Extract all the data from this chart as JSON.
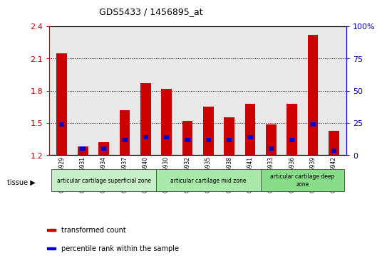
{
  "title": "GDS5433 / 1456895_at",
  "samples": [
    "GSM1256929",
    "GSM1256931",
    "GSM1256934",
    "GSM1256937",
    "GSM1256940",
    "GSM1256930",
    "GSM1256932",
    "GSM1256935",
    "GSM1256938",
    "GSM1256941",
    "GSM1256933",
    "GSM1256936",
    "GSM1256939",
    "GSM1256942"
  ],
  "red_values": [
    2.15,
    1.28,
    1.32,
    1.62,
    1.87,
    1.82,
    1.52,
    1.65,
    1.55,
    1.68,
    1.49,
    1.68,
    2.32,
    1.43
  ],
  "blue_bottom": [
    1.47,
    1.24,
    1.24,
    1.32,
    1.35,
    1.35,
    1.32,
    1.32,
    1.32,
    1.35,
    1.24,
    1.32,
    1.47,
    1.22
  ],
  "blue_height": [
    0.04,
    0.04,
    0.04,
    0.04,
    0.04,
    0.04,
    0.04,
    0.04,
    0.04,
    0.04,
    0.04,
    0.04,
    0.04,
    0.04
  ],
  "baseline": 1.2,
  "ylim_left": [
    1.2,
    2.4
  ],
  "ylim_right": [
    0,
    100
  ],
  "yticks_left": [
    1.2,
    1.5,
    1.8,
    2.1,
    2.4
  ],
  "yticks_right": [
    0,
    25,
    50,
    75,
    100
  ],
  "groups": [
    {
      "label": "articular cartilage superficial zone",
      "start": 0,
      "end": 4,
      "color": "#c8f0c8"
    },
    {
      "label": "articular cartilage mid zone",
      "start": 5,
      "end": 9,
      "color": "#a8e8a8"
    },
    {
      "label": "articular cartilage deep\nzone",
      "start": 10,
      "end": 13,
      "color": "#88dd88"
    }
  ],
  "tissue_label": "tissue",
  "legend_items": [
    {
      "label": "transformed count",
      "color": "#cc0000"
    },
    {
      "label": "percentile rank within the sample",
      "color": "#0000cc"
    }
  ],
  "bar_width": 0.5,
  "blue_bar_width": 0.25,
  "bar_color_red": "#cc0000",
  "bar_color_blue": "#0000cc",
  "bg_color": "#e8e8e8",
  "left_axis_color": "#cc0000",
  "right_axis_color": "#0000cc",
  "grid_color": "black"
}
